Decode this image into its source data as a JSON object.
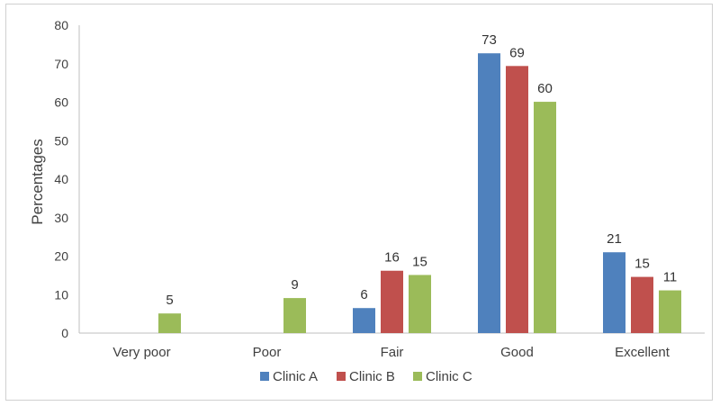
{
  "chart_data": {
    "type": "bar",
    "title": "",
    "xlabel": "",
    "ylabel": "Percentages",
    "ylim": [
      0,
      80
    ],
    "yticks": [
      0,
      10,
      20,
      30,
      40,
      50,
      60,
      70,
      80
    ],
    "categories": [
      "Very poor",
      "Poor",
      "Fair",
      "Good",
      "Excellent"
    ],
    "series": [
      {
        "name": "Clinic A",
        "color": "#4F81BD",
        "values": [
          null,
          null,
          6.5,
          72.7,
          21.0
        ],
        "labels": [
          "",
          "",
          "6",
          "73",
          "21"
        ]
      },
      {
        "name": "Clinic B",
        "color": "#C0504D",
        "values": [
          null,
          null,
          16.2,
          69.4,
          14.6
        ],
        "labels": [
          "",
          "",
          "16",
          "69",
          "15"
        ]
      },
      {
        "name": "Clinic C",
        "color": "#9BBB59",
        "values": [
          5.1,
          9.1,
          15.1,
          60.1,
          11.1
        ],
        "labels": [
          "5",
          "9",
          "15",
          "60",
          "11"
        ]
      }
    ],
    "grid": false,
    "legend_position": "bottom"
  }
}
